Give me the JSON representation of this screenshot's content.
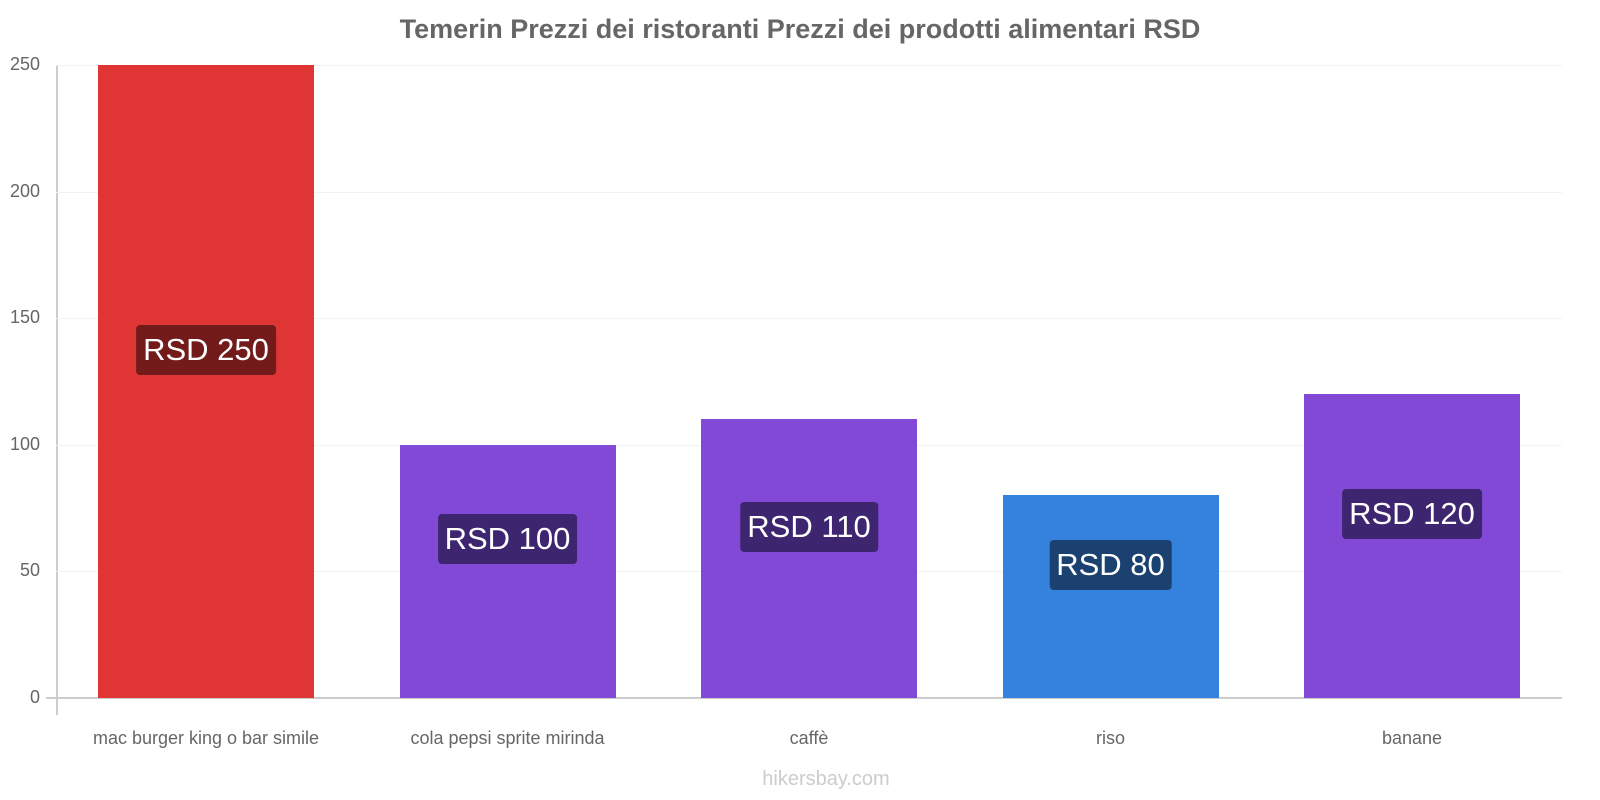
{
  "title": "Temerin Prezzi dei ristoranti Prezzi dei prodotti alimentari RSD",
  "footer": "hikersbay.com",
  "chart_data": {
    "type": "bar",
    "title": "Temerin Prezzi dei ristoranti Prezzi dei prodotti alimentari RSD",
    "xlabel": "",
    "ylabel": "",
    "ylim": [
      0,
      250
    ],
    "yticks": [
      0,
      50,
      100,
      150,
      200,
      250
    ],
    "grid": true,
    "legend": "none",
    "categories": [
      "mac burger king o bar simile",
      "cola pepsi sprite mirinda",
      "caffè",
      "riso",
      "banane"
    ],
    "values": [
      250,
      100,
      110,
      80,
      120
    ],
    "value_labels": [
      "RSD 250",
      "RSD 100",
      "RSD 110",
      "RSD 80",
      "RSD 120"
    ],
    "bar_colors": [
      "#e03535",
      "#8249d7",
      "#8249d7",
      "#3582de",
      "#8249d7"
    ],
    "label_colors": [
      "#731b1b",
      "#3e2570",
      "#3e2570",
      "#1b4171",
      "#3e2570"
    ]
  }
}
